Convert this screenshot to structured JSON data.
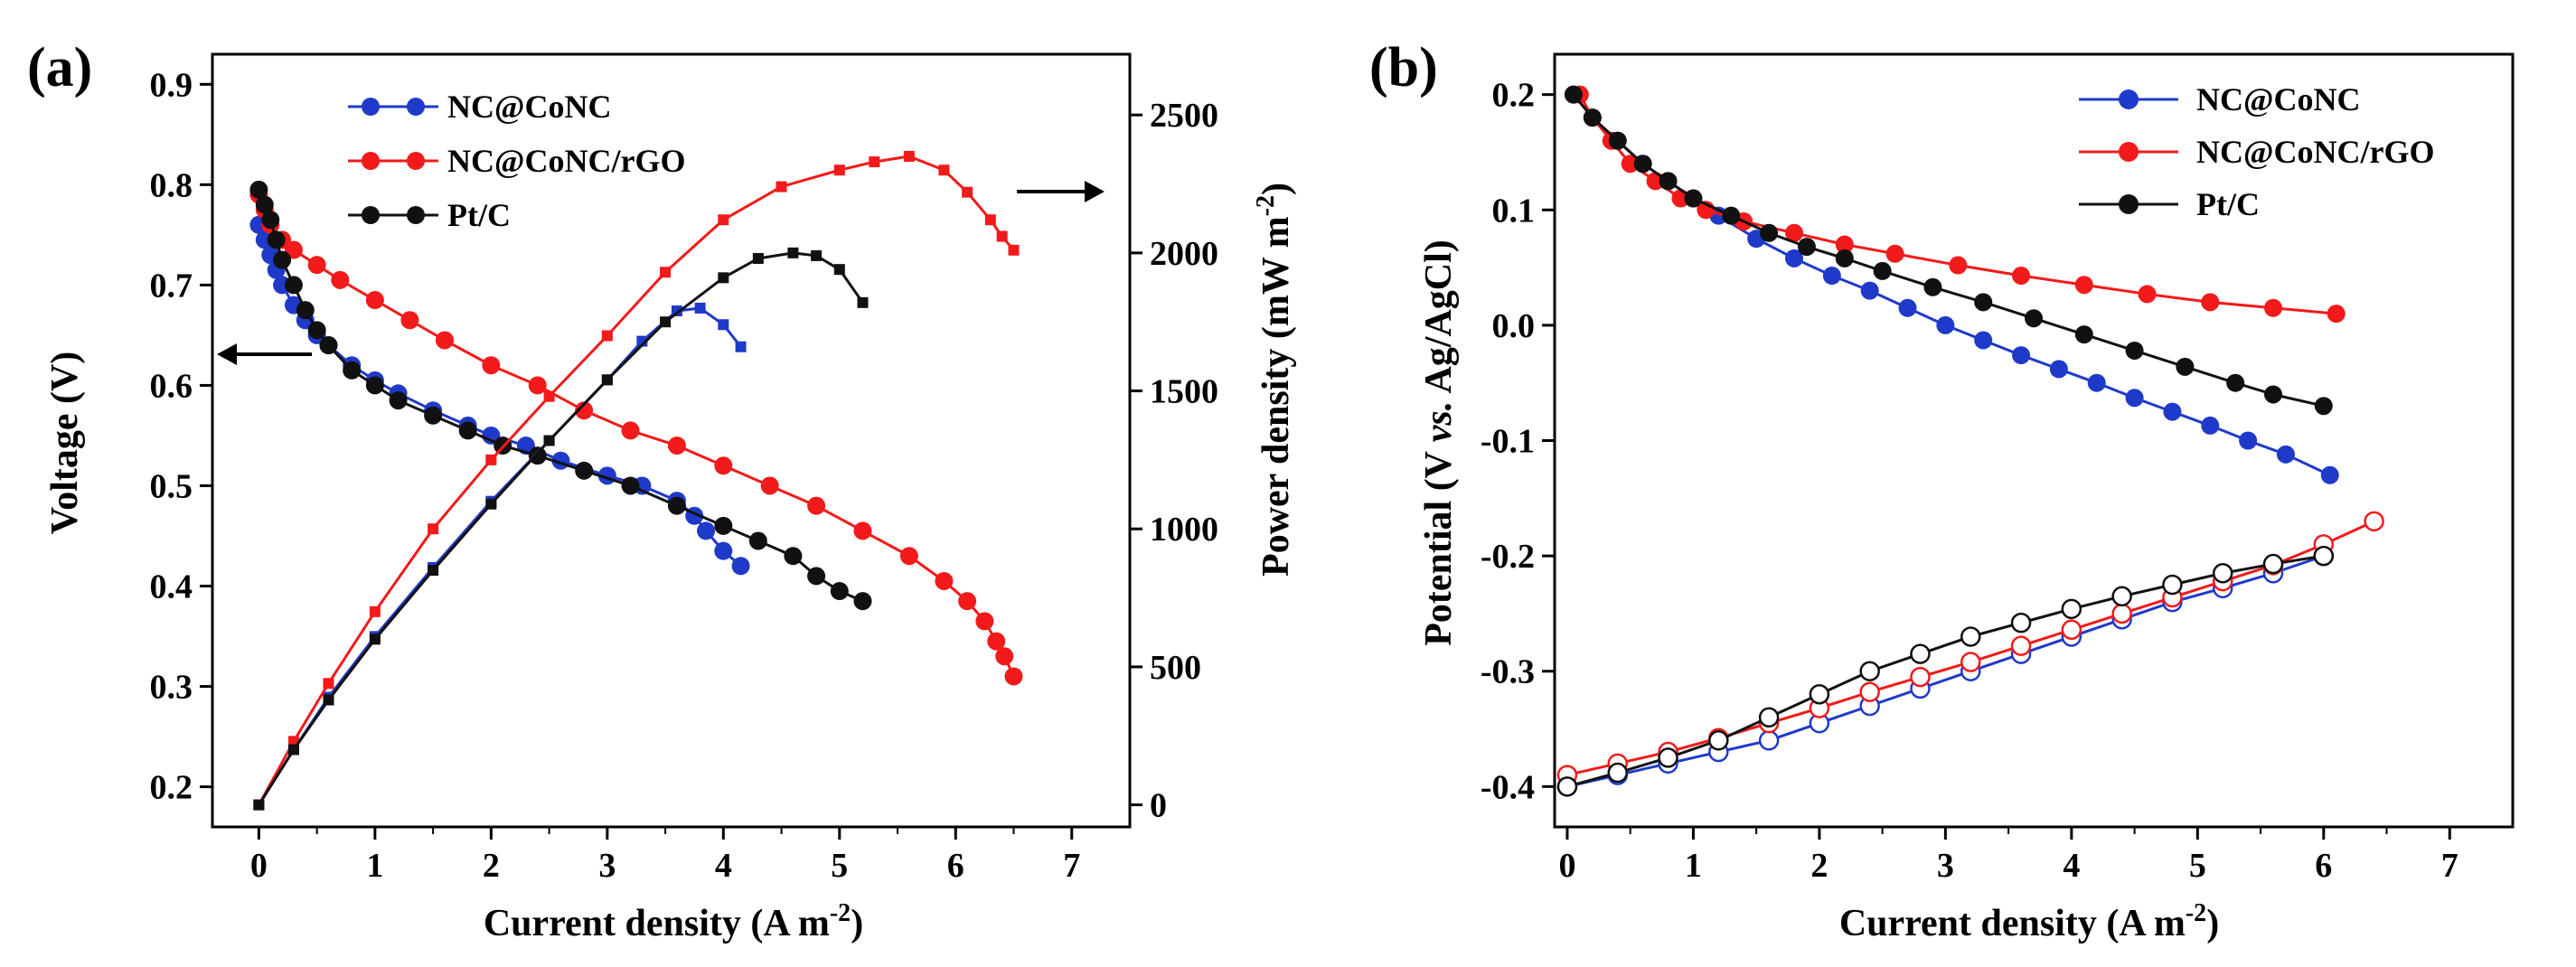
{
  "colors": {
    "blue": "#1f3ac8",
    "red": "#f21a1a",
    "black": "#111111"
  },
  "chart_data": [
    {
      "panel_label": "(a)",
      "type": "line",
      "xlabel": "Current density (A m",
      "xlabel_sup": "-2",
      "xlabel_close": ")",
      "ylabel": "Voltage (V)",
      "y2label": "Power density (mW m",
      "y2label_sup": "-2",
      "y2label_close": ")",
      "xlim": [
        -0.4,
        7.5
      ],
      "ylim": [
        0.16,
        0.93
      ],
      "y2lim": [
        -80,
        2720
      ],
      "x_ticks": [
        0,
        1,
        2,
        3,
        4,
        5,
        6,
        7
      ],
      "x_tick_labels": [
        "0",
        "1",
        "2",
        "3",
        "4",
        "5",
        "6",
        "7"
      ],
      "y_ticks": [
        0.2,
        0.3,
        0.4,
        0.5,
        0.6,
        0.7,
        0.8,
        0.9
      ],
      "y_tick_labels": [
        "0.2",
        "0.3",
        "0.4",
        "0.5",
        "0.6",
        "0.7",
        "0.8",
        "0.9"
      ],
      "y2_ticks": [
        0,
        500,
        1000,
        1500,
        2000,
        2500
      ],
      "y2_tick_labels": [
        "0",
        "500",
        "1000",
        "1500",
        "2000",
        "2500"
      ],
      "legend": [
        "NC@CoNC",
        "NC@CoNC/rGO",
        "Pt/C"
      ],
      "arrows": [
        "left",
        "right"
      ],
      "series": [
        {
          "name": "NC@CoNC",
          "color": "blue",
          "axis": "left",
          "kind": "polarization",
          "x": [
            0,
            0.05,
            0.1,
            0.15,
            0.2,
            0.3,
            0.4,
            0.5,
            0.6,
            0.8,
            1.0,
            1.2,
            1.5,
            1.8,
            2.0,
            2.3,
            2.6,
            3.0,
            3.3,
            3.6,
            3.75,
            3.85,
            4.0,
            4.15
          ],
          "y": [
            0.76,
            0.745,
            0.73,
            0.715,
            0.7,
            0.68,
            0.665,
            0.65,
            0.64,
            0.62,
            0.605,
            0.592,
            0.575,
            0.56,
            0.55,
            0.54,
            0.525,
            0.51,
            0.5,
            0.485,
            0.47,
            0.455,
            0.435,
            0.42
          ]
        },
        {
          "name": "NC@CoNC/rGO",
          "color": "red",
          "axis": "left",
          "kind": "polarization",
          "x": [
            0,
            0.05,
            0.1,
            0.2,
            0.3,
            0.5,
            0.7,
            1.0,
            1.3,
            1.6,
            2.0,
            2.4,
            2.8,
            3.2,
            3.6,
            4.0,
            4.4,
            4.8,
            5.2,
            5.6,
            5.9,
            6.1,
            6.25,
            6.35,
            6.42,
            6.5
          ],
          "y": [
            0.79,
            0.775,
            0.76,
            0.745,
            0.735,
            0.72,
            0.705,
            0.685,
            0.665,
            0.645,
            0.62,
            0.6,
            0.575,
            0.555,
            0.54,
            0.52,
            0.5,
            0.48,
            0.455,
            0.43,
            0.405,
            0.385,
            0.365,
            0.345,
            0.33,
            0.31
          ]
        },
        {
          "name": "Pt/C",
          "color": "black",
          "axis": "left",
          "kind": "polarization",
          "x": [
            0,
            0.05,
            0.1,
            0.15,
            0.2,
            0.3,
            0.4,
            0.5,
            0.6,
            0.8,
            1.0,
            1.2,
            1.5,
            1.8,
            2.1,
            2.4,
            2.8,
            3.2,
            3.6,
            4.0,
            4.3,
            4.6,
            4.8,
            5.0,
            5.2
          ],
          "y": [
            0.795,
            0.78,
            0.765,
            0.745,
            0.725,
            0.7,
            0.675,
            0.655,
            0.64,
            0.615,
            0.6,
            0.585,
            0.57,
            0.555,
            0.54,
            0.53,
            0.515,
            0.5,
            0.48,
            0.46,
            0.445,
            0.43,
            0.41,
            0.395,
            0.385
          ]
        },
        {
          "name": "NC@CoNC",
          "color": "blue",
          "axis": "right",
          "kind": "power",
          "x": [
            0,
            0.3,
            0.6,
            1.0,
            1.5,
            2.0,
            2.5,
            3.0,
            3.3,
            3.6,
            3.8,
            4.0,
            4.15
          ],
          "y": [
            0,
            200,
            390,
            610,
            860,
            1100,
            1320,
            1540,
            1680,
            1790,
            1800,
            1740,
            1660
          ]
        },
        {
          "name": "NC@CoNC/rGO",
          "color": "red",
          "axis": "right",
          "kind": "power",
          "x": [
            0,
            0.3,
            0.6,
            1.0,
            1.5,
            2.0,
            2.5,
            3.0,
            3.5,
            4.0,
            4.5,
            5.0,
            5.3,
            5.6,
            5.9,
            6.1,
            6.3,
            6.4,
            6.5
          ],
          "y": [
            0,
            230,
            440,
            700,
            1000,
            1250,
            1480,
            1700,
            1930,
            2120,
            2240,
            2300,
            2330,
            2350,
            2300,
            2220,
            2120,
            2060,
            2010
          ]
        },
        {
          "name": "Pt/C",
          "color": "black",
          "axis": "right",
          "kind": "power",
          "x": [
            0,
            0.3,
            0.6,
            1.0,
            1.5,
            2.0,
            2.5,
            3.0,
            3.5,
            4.0,
            4.3,
            4.6,
            4.8,
            5.0,
            5.2
          ],
          "y": [
            0,
            200,
            380,
            600,
            850,
            1090,
            1320,
            1540,
            1750,
            1910,
            1980,
            2000,
            1990,
            1940,
            1820
          ]
        }
      ]
    },
    {
      "panel_label": "(b)",
      "type": "line",
      "xlabel": "Current density (A m",
      "xlabel_sup": "-2",
      "xlabel_close": ")",
      "ylabel_parts": [
        "Potential (V ",
        "vs.",
        " Ag/AgCl)"
      ],
      "xlim": [
        -0.1,
        7.5
      ],
      "ylim": [
        -0.435,
        0.235
      ],
      "x_ticks": [
        0,
        1,
        2,
        3,
        4,
        5,
        6,
        7
      ],
      "x_tick_labels": [
        "0",
        "1",
        "2",
        "3",
        "4",
        "5",
        "6",
        "7"
      ],
      "y_ticks": [
        -0.4,
        -0.3,
        -0.2,
        -0.1,
        0.0,
        0.1,
        0.2
      ],
      "y_tick_labels": [
        "-0.4",
        "-0.3",
        "-0.2",
        "-0.1",
        "0.0",
        "0.1",
        "0.2"
      ],
      "legend": [
        "NC@CoNC",
        "NC@CoNC/rGO",
        "Pt/C"
      ],
      "series": [
        {
          "name": "NC@CoNC",
          "color": "blue",
          "kind": "cathode",
          "x": [
            0.05,
            0.2,
            0.4,
            0.6,
            0.8,
            1.0,
            1.2,
            1.5,
            1.8,
            2.1,
            2.4,
            2.7,
            3.0,
            3.3,
            3.6,
            3.9,
            4.2,
            4.5,
            4.8,
            5.1,
            5.4,
            5.7,
            6.05
          ],
          "y": [
            0.2,
            0.18,
            0.16,
            0.14,
            0.125,
            0.11,
            0.095,
            0.075,
            0.058,
            0.043,
            0.03,
            0.015,
            0.0,
            -0.013,
            -0.026,
            -0.038,
            -0.05,
            -0.063,
            -0.075,
            -0.087,
            -0.1,
            -0.112,
            -0.13
          ]
        },
        {
          "name": "NC@CoNC/rGO",
          "color": "red",
          "kind": "cathode",
          "x": [
            0.1,
            0.2,
            0.35,
            0.5,
            0.7,
            0.9,
            1.1,
            1.4,
            1.8,
            2.2,
            2.6,
            3.1,
            3.6,
            4.1,
            4.6,
            5.1,
            5.6,
            6.1
          ],
          "y": [
            0.2,
            0.18,
            0.16,
            0.14,
            0.125,
            0.11,
            0.1,
            0.09,
            0.08,
            0.07,
            0.062,
            0.052,
            0.043,
            0.035,
            0.027,
            0.02,
            0.015,
            0.01
          ]
        },
        {
          "name": "Pt/C",
          "color": "black",
          "kind": "cathode",
          "x": [
            0.05,
            0.2,
            0.4,
            0.6,
            0.8,
            1.0,
            1.3,
            1.6,
            1.9,
            2.2,
            2.5,
            2.9,
            3.3,
            3.7,
            4.1,
            4.5,
            4.9,
            5.3,
            5.6,
            6.0
          ],
          "y": [
            0.2,
            0.18,
            0.16,
            0.14,
            0.125,
            0.11,
            0.095,
            0.08,
            0.068,
            0.058,
            0.047,
            0.033,
            0.02,
            0.006,
            -0.008,
            -0.022,
            -0.036,
            -0.05,
            -0.06,
            -0.07
          ]
        },
        {
          "name": "NC@CoNC",
          "color": "blue",
          "kind": "anode",
          "x": [
            0.0,
            0.4,
            0.8,
            1.2,
            1.6,
            2.0,
            2.4,
            2.8,
            3.2,
            3.6,
            4.0,
            4.4,
            4.8,
            5.2,
            5.6,
            6.0
          ],
          "y": [
            -0.4,
            -0.39,
            -0.38,
            -0.37,
            -0.36,
            -0.345,
            -0.33,
            -0.315,
            -0.3,
            -0.285,
            -0.27,
            -0.255,
            -0.24,
            -0.228,
            -0.215,
            -0.2
          ]
        },
        {
          "name": "NC@CoNC/rGO",
          "color": "red",
          "kind": "anode",
          "x": [
            0.0,
            0.4,
            0.8,
            1.2,
            1.6,
            2.0,
            2.4,
            2.8,
            3.2,
            3.6,
            4.0,
            4.4,
            4.8,
            5.2,
            5.6,
            6.0,
            6.4
          ],
          "y": [
            -0.39,
            -0.38,
            -0.37,
            -0.358,
            -0.345,
            -0.332,
            -0.318,
            -0.305,
            -0.292,
            -0.278,
            -0.264,
            -0.25,
            -0.236,
            -0.222,
            -0.208,
            -0.19,
            -0.17
          ]
        },
        {
          "name": "Pt/C",
          "color": "black",
          "kind": "anode",
          "x": [
            0.0,
            0.4,
            0.8,
            1.2,
            1.6,
            2.0,
            2.4,
            2.8,
            3.2,
            3.6,
            4.0,
            4.4,
            4.8,
            5.2,
            5.6,
            6.0
          ],
          "y": [
            -0.4,
            -0.388,
            -0.375,
            -0.36,
            -0.34,
            -0.32,
            -0.3,
            -0.285,
            -0.27,
            -0.258,
            -0.246,
            -0.235,
            -0.225,
            -0.215,
            -0.207,
            -0.2
          ]
        }
      ]
    }
  ]
}
